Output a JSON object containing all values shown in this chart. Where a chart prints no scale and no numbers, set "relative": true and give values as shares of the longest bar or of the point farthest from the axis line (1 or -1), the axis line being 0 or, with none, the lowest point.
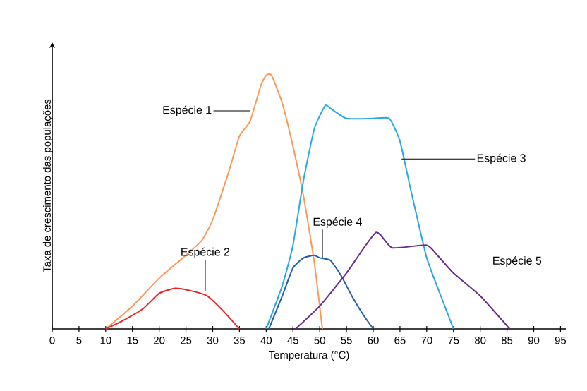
{
  "chart_data": {
    "type": "line",
    "relative": true,
    "xlabel": "Temperatura (°C)",
    "ylabel": "Taxa de crescimento das populações",
    "xlim": [
      0,
      96
    ],
    "xticks": [
      0,
      5,
      10,
      15,
      20,
      25,
      30,
      35,
      40,
      45,
      50,
      55,
      60,
      65,
      70,
      75,
      80,
      85,
      90,
      95
    ],
    "grid": false,
    "marker": "none",
    "line_style": "solid",
    "series": [
      {
        "color": "#f79a5a",
        "x": [
          10,
          15,
          20,
          25,
          28,
          30,
          33,
          35,
          37,
          39,
          40,
          41,
          43,
          45,
          47,
          49,
          50.5
        ],
        "values": [
          0,
          0.09,
          0.2,
          0.29,
          0.35,
          0.43,
          0.62,
          0.76,
          0.82,
          0.96,
          1,
          1,
          0.89,
          0.72,
          0.52,
          0.26,
          0
        ]
      },
      {
        "color": "#e8262a",
        "x": [
          10,
          13,
          17,
          20,
          23,
          26,
          29,
          32,
          35
        ],
        "values": [
          0,
          0.03,
          0.08,
          0.14,
          0.16,
          0.15,
          0.13,
          0.07,
          0
        ]
      },
      {
        "color": "#2ea7e0",
        "x": [
          40,
          43,
          45,
          47,
          49,
          51,
          52,
          55,
          60,
          63,
          65,
          67,
          70,
          73,
          75
        ],
        "values": [
          0,
          0.17,
          0.33,
          0.59,
          0.79,
          0.88,
          0.87,
          0.83,
          0.83,
          0.83,
          0.74,
          0.55,
          0.28,
          0.11,
          0
        ]
      },
      {
        "color": "#1f5fad",
        "x": [
          40.5,
          43,
          45,
          47,
          49,
          50,
          52,
          54,
          56,
          58,
          60
        ],
        "values": [
          0,
          0.13,
          0.24,
          0.28,
          0.29,
          0.28,
          0.27,
          0.21,
          0.13,
          0.06,
          0
        ]
      },
      {
        "color": "#6a2c91",
        "x": [
          45.5,
          50,
          55,
          60.5,
          63.5,
          70,
          72,
          75,
          80,
          85.5
        ],
        "values": [
          0,
          0.09,
          0.22,
          0.38,
          0.32,
          0.33,
          0.29,
          0.22,
          0.13,
          0
        ]
      }
    ],
    "annotations": [
      {
        "text": "Espécie 1",
        "x": 37,
        "y": 0.86
      },
      {
        "text": "Espécie 2",
        "x": 28.6,
        "y": 0.15
      },
      {
        "text": "Espécie 3",
        "x": 65.3,
        "y": 0.67
      },
      {
        "text": "Espécie 4",
        "x": 50.5,
        "y": 0.28
      },
      "Espécie 5"
    ]
  }
}
